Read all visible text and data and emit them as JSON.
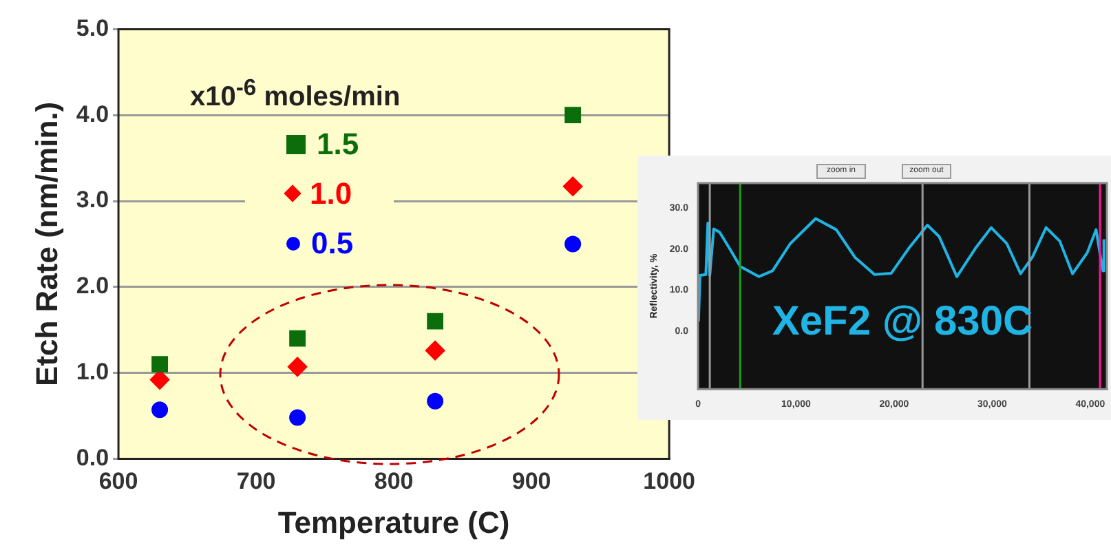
{
  "chart_data": [
    {
      "type": "scatter",
      "xlabel": "Temperature (C)",
      "ylabel": "Etch Rate (nm/min.)",
      "legend_title": "x10$^{-6}$ moles/min",
      "x": [
        630,
        730,
        830,
        930
      ],
      "series": [
        {
          "name": "1.5",
          "color": "#0b6e0b",
          "marker": "square",
          "values": [
            1.1,
            1.4,
            1.6,
            4.0
          ]
        },
        {
          "name": "1.0",
          "color": "#ff0000",
          "marker": "diamond",
          "values": [
            0.92,
            1.07,
            1.26,
            3.17
          ]
        },
        {
          "name": "0.5",
          "color": "#0000ff",
          "marker": "circle",
          "values": [
            0.57,
            0.48,
            0.67,
            2.5
          ]
        }
      ],
      "xlim": [
        600,
        1000
      ],
      "xticks": [
        600,
        700,
        800,
        900,
        1000
      ],
      "ylim": [
        0,
        5
      ],
      "yticks": [
        {
          "value": 0,
          "label": "0.0"
        },
        {
          "value": 1,
          "label": "1.0"
        },
        {
          "value": 2,
          "label": "2.0"
        },
        {
          "value": 3,
          "label": "3.0"
        },
        {
          "value": 4,
          "label": "4.0"
        },
        {
          "value": 5,
          "label": "5.0"
        }
      ],
      "grid": "y",
      "legend": "top left"
    },
    {
      "type": "line",
      "ylabel": "Reflectivity, %",
      "annotations": [
        "XeF2 @ 830C",
        "zoom in",
        "zoom out"
      ],
      "x": [
        50,
        200,
        800,
        1000,
        1200,
        1600,
        2200,
        3200,
        4300,
        6200,
        7600,
        9400,
        12000,
        14100,
        16000,
        18000,
        19700,
        21500,
        23400,
        24600,
        26400,
        28300,
        29900,
        31500,
        32900,
        34100,
        35500,
        36900,
        38200,
        39700,
        40600,
        41100,
        41300,
        41400
      ],
      "series": [
        {
          "color": "#1fb4e4",
          "values": [
            2.4,
            13.6,
            13.8,
            26.3,
            13.6,
            24.9,
            24.1,
            20.2,
            15.8,
            13.3,
            14.7,
            21.3,
            27.4,
            24.7,
            18.0,
            13.8,
            14.1,
            20.2,
            25.8,
            23.0,
            13.3,
            20.2,
            25.2,
            21.3,
            14.0,
            18.0,
            25.2,
            21.9,
            14.0,
            19.1,
            24.7,
            17.4,
            14.7,
            22.4
          ]
        }
      ],
      "xlim": [
        0,
        41700
      ],
      "xticks": [
        0,
        {
          "value": 10000,
          "label": "10,000"
        },
        {
          "value": 20000,
          "label": "20,000"
        },
        {
          "value": 30000,
          "label": "30,000"
        },
        {
          "value": 40000,
          "label": "40,000"
        }
      ],
      "ylim": [
        -14,
        36
      ],
      "yticks": [
        {
          "value": 0,
          "label": "0.0"
        },
        {
          "value": 10,
          "label": "10.0"
        },
        {
          "value": 20,
          "label": "20.0"
        },
        {
          "value": 30,
          "label": "30.0"
        }
      ],
      "marker": "none",
      "line_style": "solid",
      "legend": false,
      "ref_lines": [
        {
          "axis": "x",
          "value": 1200,
          "color": "#9a9a9a"
        },
        {
          "axis": "x",
          "value": 4300,
          "color": "#16a016"
        },
        {
          "axis": "x",
          "value": 22900,
          "color": "#9a9a9a"
        },
        {
          "axis": "x",
          "value": 33800,
          "color": "#9a9a9a"
        },
        {
          "axis": "x",
          "value": 41000,
          "color": "#ff1493"
        }
      ]
    }
  ]
}
